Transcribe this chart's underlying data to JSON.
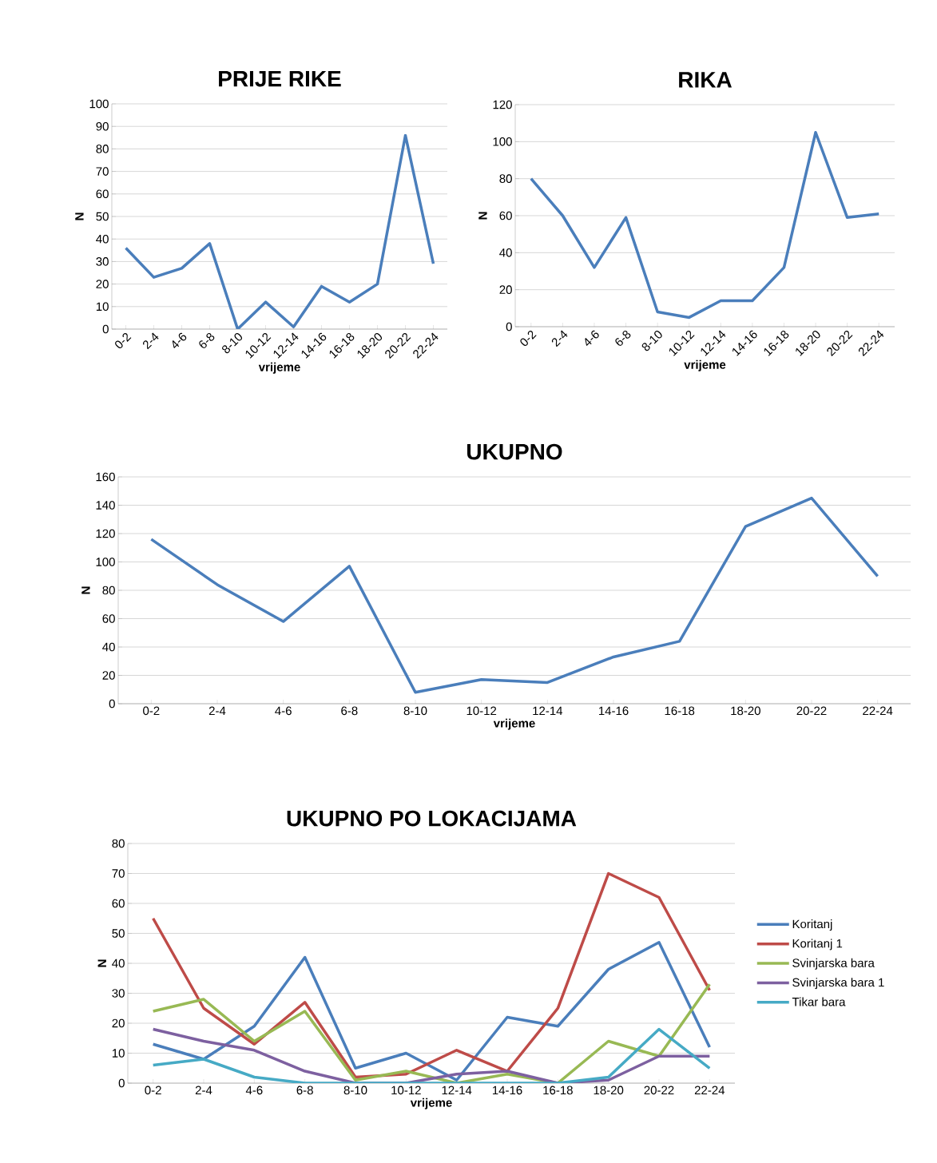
{
  "chart_data": [
    {
      "type": "line",
      "title": "PRIJE RIKE",
      "xlabel": "vrijeme",
      "ylabel": "N",
      "categories": [
        "0-2",
        "2-4",
        "4-6",
        "6-8",
        "8-10",
        "10-12",
        "12-14",
        "14-16",
        "16-18",
        "18-20",
        "20-22",
        "22-24"
      ],
      "series": [
        {
          "color": "#4a7ebb",
          "values": [
            36,
            23,
            27,
            38,
            0,
            12,
            1,
            19,
            12,
            20,
            86,
            29
          ]
        }
      ],
      "ylim": [
        0,
        100
      ],
      "yticks": [
        0,
        10,
        20,
        30,
        40,
        50,
        60,
        70,
        80,
        90,
        100
      ],
      "grid": "y",
      "marker": "none",
      "line_style": "solid"
    },
    {
      "type": "line",
      "title": "RIKA",
      "xlabel": "vrijeme",
      "ylabel": "N",
      "categories": [
        "0-2",
        "2-4",
        "4-6",
        "6-8",
        "8-10",
        "10-12",
        "12-14",
        "14-16",
        "16-18",
        "18-20",
        "20-22",
        "22-24"
      ],
      "series": [
        {
          "color": "#4a7ebb",
          "values": [
            80,
            60,
            32,
            59,
            8,
            5,
            14,
            14,
            32,
            105,
            59,
            61
          ]
        }
      ],
      "ylim": [
        0,
        120
      ],
      "yticks": [
        0,
        20,
        40,
        60,
        80,
        100,
        120
      ],
      "grid": "y",
      "marker": "none",
      "line_style": "solid"
    },
    {
      "type": "line",
      "title": "UKUPNO",
      "xlabel": "vrijeme",
      "ylabel": "N",
      "categories": [
        "0-2",
        "2-4",
        "4-6",
        "6-8",
        "8-10",
        "10-12",
        "12-14",
        "14-16",
        "16-18",
        "18-20",
        "20-22",
        "22-24"
      ],
      "series": [
        {
          "color": "#4a7ebb",
          "values": [
            116,
            84,
            58,
            97,
            8,
            17,
            15,
            33,
            44,
            125,
            145,
            90
          ]
        }
      ],
      "ylim": [
        0,
        160
      ],
      "yticks": [
        0,
        20,
        40,
        60,
        80,
        100,
        120,
        140,
        160
      ],
      "grid": "y",
      "marker": "none",
      "line_style": "solid"
    },
    {
      "type": "line",
      "title": "UKUPNO PO LOKACIJAMA",
      "xlabel": "vrijeme",
      "ylabel": "N",
      "categories": [
        "0-2",
        "2-4",
        "4-6",
        "6-8",
        "8-10",
        "10-12",
        "12-14",
        "14-16",
        "16-18",
        "18-20",
        "20-22",
        "22-24"
      ],
      "series": [
        {
          "name": "Koritanj",
          "color": "#4a7ebb",
          "values": [
            13,
            8,
            19,
            42,
            5,
            10,
            1,
            22,
            19,
            38,
            47,
            12
          ]
        },
        {
          "name": "Koritanj 1",
          "color": "#be4b48",
          "values": [
            55,
            25,
            13,
            27,
            2,
            3,
            11,
            4,
            25,
            70,
            62,
            31
          ]
        },
        {
          "name": "Svinjarska bara",
          "color": "#98b954",
          "values": [
            24,
            28,
            14,
            24,
            1,
            4,
            0,
            3,
            0,
            14,
            9,
            33
          ]
        },
        {
          "name": "Svinjarska bara 1",
          "color": "#7d60a0",
          "values": [
            18,
            14,
            11,
            4,
            0,
            0,
            3,
            4,
            0,
            1,
            9,
            9
          ]
        },
        {
          "name": "Tikar bara",
          "color": "#46aac5",
          "values": [
            6,
            8,
            2,
            0,
            0,
            0,
            0,
            0,
            0,
            2,
            18,
            5
          ]
        }
      ],
      "ylim": [
        0,
        80
      ],
      "yticks": [
        0,
        10,
        20,
        30,
        40,
        50,
        60,
        70,
        80
      ],
      "grid": "y",
      "legend": "right",
      "marker": "none",
      "line_style": "solid"
    }
  ]
}
